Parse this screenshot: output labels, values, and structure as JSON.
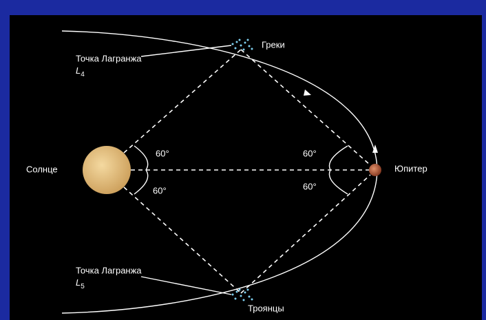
{
  "greeks": "Греки",
  "sun": "Солнце",
  "jupiter": "Юпитер",
  "trojans": "Троянцы",
  "lagrange_l4": {
    "caption": "Точка Лагранжа",
    "symbol": "L",
    "index": "4"
  },
  "lagrange_l5": {
    "caption": "Точка Лагранжа",
    "symbol": "L",
    "index": "5"
  },
  "angles": {
    "sun_upper": "60°",
    "sun_lower": "60°",
    "jupiter_upper": "60°",
    "jupiter_lower": "60°"
  }
}
